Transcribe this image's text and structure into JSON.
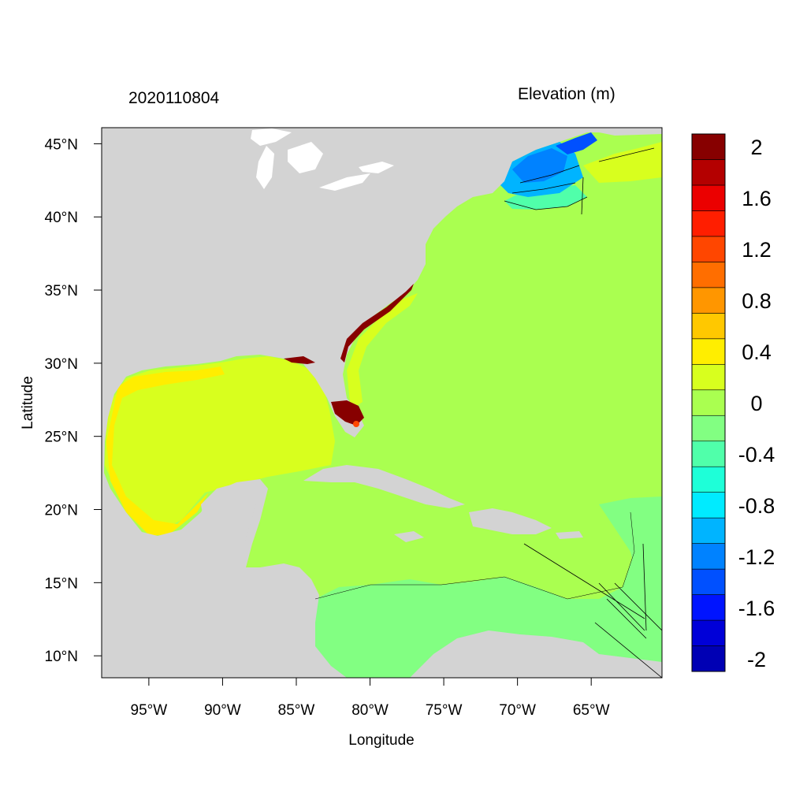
{
  "map": {
    "timestamp": "2020110804",
    "field_title": "Elevation (m)",
    "xlabel": "Longitude",
    "ylabel": "Latitude",
    "lon_range": [
      -98.2,
      -60.2
    ],
    "lat_range": [
      8.5,
      46.1
    ],
    "lon_ticks": [
      {
        "value": -95,
        "label": "95°W"
      },
      {
        "value": -90,
        "label": "90°W"
      },
      {
        "value": -85,
        "label": "85°W"
      },
      {
        "value": -80,
        "label": "80°W"
      },
      {
        "value": -75,
        "label": "75°W"
      },
      {
        "value": -70,
        "label": "70°W"
      },
      {
        "value": -65,
        "label": "65°W"
      }
    ],
    "lat_ticks": [
      {
        "value": 45,
        "label": "45°N"
      },
      {
        "value": 40,
        "label": "40°N"
      },
      {
        "value": 35,
        "label": "35°N"
      },
      {
        "value": 30,
        "label": "30°N"
      },
      {
        "value": 25,
        "label": "25°N"
      },
      {
        "value": 20,
        "label": "20°N"
      },
      {
        "value": 15,
        "label": "15°N"
      },
      {
        "value": 10,
        "label": "10°N"
      }
    ],
    "colors": {
      "land": "#d3d3d3",
      "lake": "#ffffff",
      "background": "#ffffff"
    }
  },
  "colorbar": {
    "levels": [
      {
        "color": "#0000b4"
      },
      {
        "color": "#0000d8"
      },
      {
        "color": "#0014ff"
      },
      {
        "color": "#0050ff"
      },
      {
        "color": "#0082ff"
      },
      {
        "color": "#00b4ff"
      },
      {
        "color": "#00ebff"
      },
      {
        "color": "#1effd8"
      },
      {
        "color": "#50ffaa"
      },
      {
        "color": "#82ff82"
      },
      {
        "color": "#aaff50"
      },
      {
        "color": "#d8ff1e"
      },
      {
        "color": "#ffee00"
      },
      {
        "color": "#ffc800"
      },
      {
        "color": "#ff9600"
      },
      {
        "color": "#ff6e00"
      },
      {
        "color": "#ff4600"
      },
      {
        "color": "#ff1e00"
      },
      {
        "color": "#eb0000"
      },
      {
        "color": "#b40000"
      },
      {
        "color": "#870000"
      }
    ],
    "labels": [
      {
        "value": -2,
        "text": "-2"
      },
      {
        "value": -1.6,
        "text": "-1.6"
      },
      {
        "value": -1.2,
        "text": "-1.2"
      },
      {
        "value": -0.8,
        "text": "-0.8"
      },
      {
        "value": -0.4,
        "text": "-0.4"
      },
      {
        "value": 0,
        "text": "0"
      },
      {
        "value": 0.4,
        "text": "0.4"
      },
      {
        "value": 0.8,
        "text": "0.8"
      },
      {
        "value": 1.2,
        "text": "1.2"
      },
      {
        "value": 1.6,
        "text": "1.6"
      },
      {
        "value": 2,
        "text": "2"
      }
    ]
  }
}
